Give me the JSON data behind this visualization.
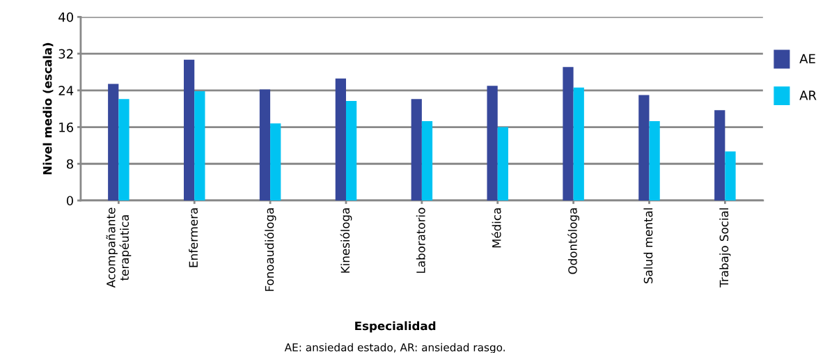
{
  "chart_data": {
    "type": "bar",
    "xlabel": "Especialidad",
    "ylabel": "Nivel medio (escala)",
    "categories": [
      "Acompañante\nterapéutica",
      "Enfermera",
      "Fonoaudióloga",
      "Kinesióloga",
      "Laboratorio",
      "Médica",
      "Odontóloga",
      "Salud mental",
      "Trabajo Social"
    ],
    "series": [
      {
        "name": "AE",
        "color": "#36479b",
        "values": [
          25.4,
          30.7,
          24.2,
          26.6,
          22.1,
          25.0,
          29.1,
          23.0,
          19.7
        ]
      },
      {
        "name": "AR",
        "color": "#00c3f2",
        "values": [
          22.1,
          23.8,
          16.8,
          21.7,
          17.3,
          16.0,
          24.6,
          17.3,
          10.7
        ]
      }
    ],
    "ylim": [
      0,
      40
    ],
    "yticks": [
      0,
      8,
      16,
      24,
      32,
      40
    ],
    "grid": "y",
    "legend": "right",
    "annotations": [
      "AE: ansiedad estado, AR: ansiedad rasgo."
    ]
  }
}
